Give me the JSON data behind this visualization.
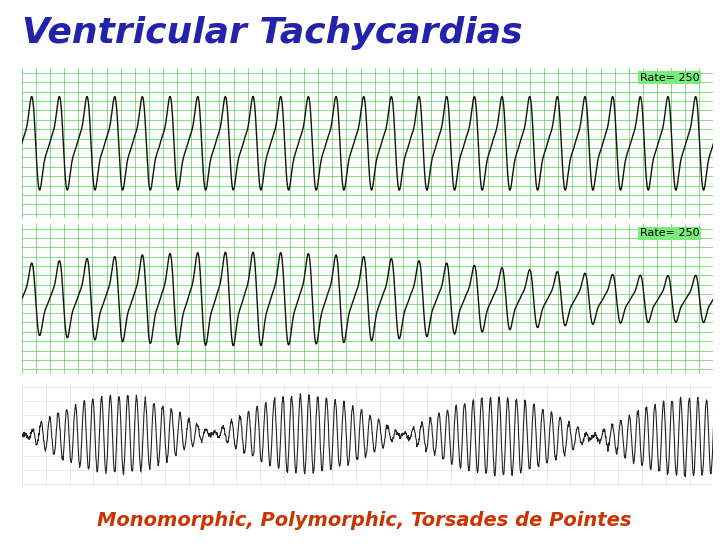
{
  "title": "Ventricular Tachycardias",
  "title_color": "#2222aa",
  "title_fontsize": 26,
  "subtitle": "Monomorphic, Polymorphic, Torsades de Pointes",
  "subtitle_color": "#cc3300",
  "subtitle_fontsize": 14,
  "bg_color": "#ffffff",
  "ecg_bg_color": "#77ee77",
  "ecg_grid_color": "#44cc44",
  "ecg_line_color": "#111111",
  "rate_label": "Rate= 250",
  "bottom_bg_color": "#f0f0f0",
  "bottom_line_color": "#222222"
}
